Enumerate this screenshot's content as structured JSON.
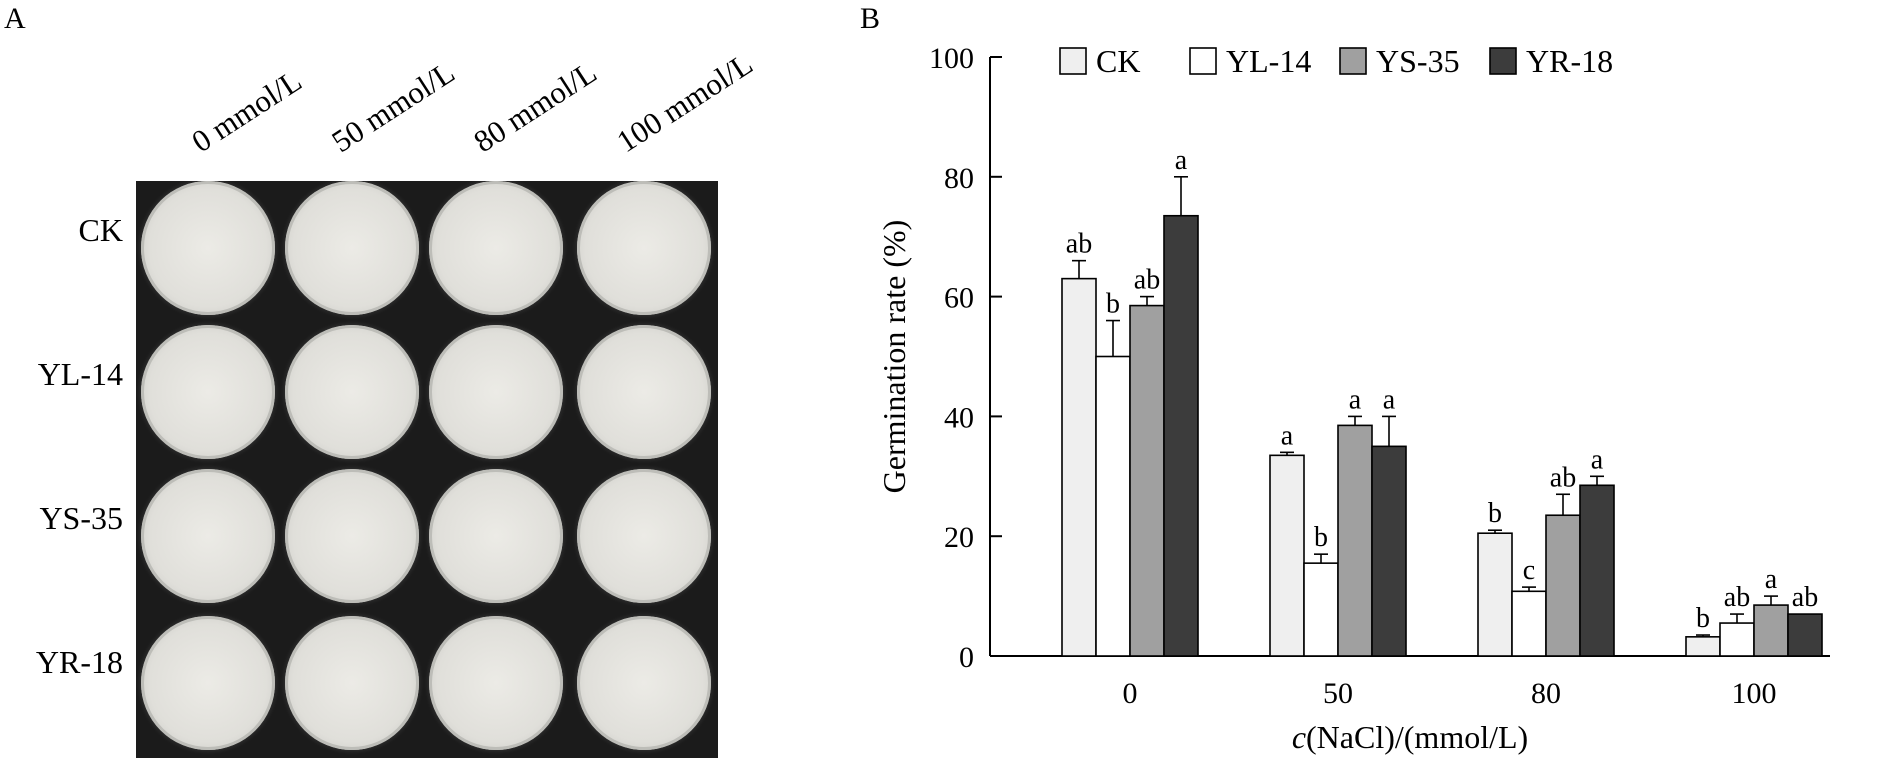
{
  "panel_a": {
    "label": "A",
    "columns": [
      "0 mmol/L",
      "50 mmol/L",
      "80 mmol/L",
      "100 mmol/L"
    ],
    "rows": [
      "CK",
      "YL-14",
      "YS-35",
      "YR-18"
    ]
  },
  "panel_b": {
    "label": "B"
  },
  "chart_data": {
    "type": "bar",
    "xlabel_italic": "c",
    "xlabel_rest": "(NaCl)/(mmol/L)",
    "ylabel": "Germination rate (%)",
    "ylim": [
      0,
      100
    ],
    "yticks": [
      "0",
      "20",
      "40",
      "60",
      "80",
      "100"
    ],
    "categories": [
      "0",
      "50",
      "80",
      "100"
    ],
    "legend_position": "top",
    "series": [
      {
        "name": "CK",
        "color": "#efefef",
        "values": [
          63,
          33.5,
          20.5,
          3.2
        ],
        "errors": [
          3,
          0.5,
          0.5,
          0.3
        ],
        "labels": [
          "ab",
          "a",
          "b",
          "b"
        ]
      },
      {
        "name": "YL-14",
        "color": "#ffffff",
        "values": [
          50,
          15.5,
          10.8,
          5.5
        ],
        "errors": [
          6,
          1.5,
          0.7,
          1.5
        ],
        "labels": [
          "b",
          "b",
          "c",
          "ab"
        ]
      },
      {
        "name": "YS-35",
        "color": "#a0a0a0",
        "values": [
          58.5,
          38.5,
          23.5,
          8.5
        ],
        "errors": [
          1.5,
          1.5,
          3.5,
          1.5
        ],
        "labels": [
          "ab",
          "a",
          "ab",
          "a"
        ]
      },
      {
        "name": "YR-18",
        "color": "#3c3c3c",
        "values": [
          73.5,
          35,
          28.5,
          7
        ],
        "errors": [
          6.5,
          5,
          1.5,
          0
        ],
        "labels": [
          "a",
          "a",
          "a",
          "ab"
        ]
      }
    ]
  }
}
